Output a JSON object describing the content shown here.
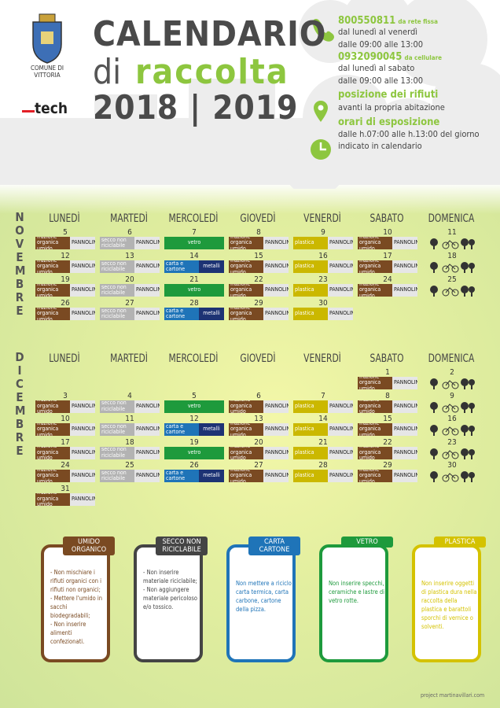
{
  "header": {
    "municipality": "COMUNE DI VITTORIA",
    "brand": "tech",
    "title": "CALENDARIO",
    "subtitle_prefix": "di",
    "subtitle": "raccolta",
    "years": "2018 | 2019"
  },
  "contacts": {
    "phone1": "800550811",
    "phone1_note": "da rete fissa",
    "phone1_days": "dal lunedì al venerdì",
    "phone1_hours": "dalle 09:00 alle 13:00",
    "phone2": "0932090045",
    "phone2_note": "da cellulare",
    "phone2_days": "dal lunedì al sabato",
    "phone2_hours": "dalle 09:00 alle 13:00",
    "position_title": "posizione dei rifiuti",
    "position_text": "avanti la propria abitazione",
    "hours_title": "orari di esposizione",
    "hours_text1": "dalle h.07:00 alle h.13:00 del giorno",
    "hours_text2": "indicato in calendario"
  },
  "weekdays": [
    "LUNEDÌ",
    "MARTEDÌ",
    "MERCOLEDÌ",
    "GIOVEDÌ",
    "VENERDÌ",
    "SABATO",
    "DOMENICA"
  ],
  "months": [
    {
      "name": "NOVEMBRE",
      "weeks": [
        [
          {
            "day": 5,
            "items": [
              {
                "text": "frazione organica umido",
                "color": "#7a4a22"
              },
              {
                "text": "PANNOLINI",
                "color": "#e6e6e6"
              }
            ]
          },
          {
            "day": 6,
            "items": [
              {
                "text": "secco non riciclabile",
                "color": "#b3b3b3"
              },
              {
                "text": "PANNOLINI",
                "color": "#e6e6e6"
              }
            ]
          },
          {
            "day": 7,
            "items": [
              {
                "text": "vetro",
                "color": "#1e9a3c"
              }
            ]
          },
          {
            "day": 8,
            "items": [
              {
                "text": "frazione organica umido",
                "color": "#7a4a22"
              },
              {
                "text": "PANNOLINI",
                "color": "#e6e6e6"
              }
            ]
          },
          {
            "day": 9,
            "items": [
              {
                "text": "plastica",
                "color": "#cbb800"
              },
              {
                "text": "PANNOLINI",
                "color": "#e6e6e6"
              }
            ]
          },
          {
            "day": 10,
            "items": [
              {
                "text": "frazione organica umido",
                "color": "#7a4a22"
              },
              {
                "text": "PANNOLINI",
                "color": "#e6e6e6"
              }
            ]
          },
          {
            "day": 11
          }
        ],
        [
          {
            "day": 12,
            "items": [
              {
                "text": "frazione organica umido",
                "color": "#7a4a22"
              },
              {
                "text": "PANNOLINI",
                "color": "#e6e6e6"
              }
            ]
          },
          {
            "day": 13,
            "items": [
              {
                "text": "secco non riciclabile",
                "color": "#b3b3b3"
              },
              {
                "text": "PANNOLINI",
                "color": "#e6e6e6"
              }
            ]
          },
          {
            "day": 14,
            "items": [
              {
                "text": "carta e cartone",
                "color": "#1f74b8"
              },
              {
                "text": "metalli",
                "color": "#1d3374"
              }
            ]
          },
          {
            "day": 15,
            "items": [
              {
                "text": "frazione organica umido",
                "color": "#7a4a22"
              },
              {
                "text": "PANNOLINI",
                "color": "#e6e6e6"
              }
            ]
          },
          {
            "day": 16,
            "items": [
              {
                "text": "plastica",
                "color": "#cbb800"
              },
              {
                "text": "PANNOLINI",
                "color": "#e6e6e6"
              }
            ]
          },
          {
            "day": 17,
            "items": [
              {
                "text": "frazione organica umido",
                "color": "#7a4a22"
              },
              {
                "text": "PANNOLINI",
                "color": "#e6e6e6"
              }
            ]
          },
          {
            "day": 18
          }
        ],
        [
          {
            "day": 19,
            "items": [
              {
                "text": "frazione organica umido",
                "color": "#7a4a22"
              },
              {
                "text": "PANNOLINI",
                "color": "#e6e6e6"
              }
            ]
          },
          {
            "day": 20,
            "items": [
              {
                "text": "secco non riciclabile",
                "color": "#b3b3b3"
              },
              {
                "text": "PANNOLINI",
                "color": "#e6e6e6"
              }
            ]
          },
          {
            "day": 21,
            "items": [
              {
                "text": "vetro",
                "color": "#1e9a3c"
              }
            ]
          },
          {
            "day": 22,
            "items": [
              {
                "text": "frazione organica umido",
                "color": "#7a4a22"
              },
              {
                "text": "PANNOLINI",
                "color": "#e6e6e6"
              }
            ]
          },
          {
            "day": 23,
            "items": [
              {
                "text": "plastica",
                "color": "#cbb800"
              },
              {
                "text": "PANNOLINI",
                "color": "#e6e6e6"
              }
            ]
          },
          {
            "day": 24,
            "items": [
              {
                "text": "frazione organica umido",
                "color": "#7a4a22"
              },
              {
                "text": "PANNOLINI",
                "color": "#e6e6e6"
              }
            ]
          },
          {
            "day": 25
          }
        ],
        [
          {
            "day": 26,
            "items": [
              {
                "text": "frazione organica umido",
                "color": "#7a4a22"
              },
              {
                "text": "PANNOLINI",
                "color": "#e6e6e6"
              }
            ]
          },
          {
            "day": 27,
            "items": [
              {
                "text": "secco non riciclabile",
                "color": "#b3b3b3"
              },
              {
                "text": "PANNOLINI",
                "color": "#e6e6e6"
              }
            ]
          },
          {
            "day": 28,
            "items": [
              {
                "text": "carta e cartone",
                "color": "#1f74b8"
              },
              {
                "text": "metalli",
                "color": "#1d3374"
              }
            ]
          },
          {
            "day": 29,
            "items": [
              {
                "text": "frazione organica umido",
                "color": "#7a4a22"
              },
              {
                "text": "PANNOLINI",
                "color": "#e6e6e6"
              }
            ]
          },
          {
            "day": 30,
            "items": [
              {
                "text": "plastica",
                "color": "#cbb800"
              },
              {
                "text": "PANNOLINI",
                "color": "#e6e6e6"
              }
            ]
          },
          null,
          null
        ]
      ]
    },
    {
      "name": "DICEMBRE",
      "weeks": [
        [
          null,
          null,
          null,
          null,
          null,
          {
            "day": 1,
            "items": [
              {
                "text": "frazione organica umido",
                "color": "#7a4a22"
              },
              {
                "text": "PANNOLINI",
                "color": "#e6e6e6"
              }
            ]
          },
          {
            "day": 2
          }
        ],
        [
          {
            "day": 3,
            "items": [
              {
                "text": "frazione organica umido",
                "color": "#7a4a22"
              },
              {
                "text": "PANNOLINI",
                "color": "#e6e6e6"
              }
            ]
          },
          {
            "day": 4,
            "items": [
              {
                "text": "secco non riciclabile",
                "color": "#b3b3b3"
              },
              {
                "text": "PANNOLINI",
                "color": "#e6e6e6"
              }
            ]
          },
          {
            "day": 5,
            "items": [
              {
                "text": "vetro",
                "color": "#1e9a3c"
              }
            ]
          },
          {
            "day": 6,
            "items": [
              {
                "text": "frazione organica umido",
                "color": "#7a4a22"
              },
              {
                "text": "PANNOLINI",
                "color": "#e6e6e6"
              }
            ]
          },
          {
            "day": 7,
            "items": [
              {
                "text": "plastica",
                "color": "#cbb800"
              },
              {
                "text": "PANNOLINI",
                "color": "#e6e6e6"
              }
            ]
          },
          {
            "day": 8,
            "items": [
              {
                "text": "frazione organica umido",
                "color": "#7a4a22"
              },
              {
                "text": "PANNOLINI",
                "color": "#e6e6e6"
              }
            ]
          },
          {
            "day": 9
          }
        ],
        [
          {
            "day": 10,
            "items": [
              {
                "text": "frazione organica umido",
                "color": "#7a4a22"
              },
              {
                "text": "PANNOLINI",
                "color": "#e6e6e6"
              }
            ]
          },
          {
            "day": 11,
            "items": [
              {
                "text": "secco non riciclabile",
                "color": "#b3b3b3"
              },
              {
                "text": "PANNOLINI",
                "color": "#e6e6e6"
              }
            ]
          },
          {
            "day": 12,
            "items": [
              {
                "text": "carta e cartone",
                "color": "#1f74b8"
              },
              {
                "text": "metalli",
                "color": "#1d3374"
              }
            ]
          },
          {
            "day": 13,
            "items": [
              {
                "text": "frazione organica umido",
                "color": "#7a4a22"
              },
              {
                "text": "PANNOLINI",
                "color": "#e6e6e6"
              }
            ]
          },
          {
            "day": 14,
            "items": [
              {
                "text": "plastica",
                "color": "#cbb800"
              },
              {
                "text": "PANNOLINI",
                "color": "#e6e6e6"
              }
            ]
          },
          {
            "day": 15,
            "items": [
              {
                "text": "frazione organica umido",
                "color": "#7a4a22"
              },
              {
                "text": "PANNOLINI",
                "color": "#e6e6e6"
              }
            ]
          },
          {
            "day": 16
          }
        ],
        [
          {
            "day": 17,
            "items": [
              {
                "text": "frazione organica umido",
                "color": "#7a4a22"
              },
              {
                "text": "PANNOLINI",
                "color": "#e6e6e6"
              }
            ]
          },
          {
            "day": 18,
            "items": [
              {
                "text": "secco non riciclabile",
                "color": "#b3b3b3"
              },
              {
                "text": "PANNOLINI",
                "color": "#e6e6e6"
              }
            ]
          },
          {
            "day": 19,
            "items": [
              {
                "text": "vetro",
                "color": "#1e9a3c"
              }
            ]
          },
          {
            "day": 20,
            "items": [
              {
                "text": "frazione organica umido",
                "color": "#7a4a22"
              },
              {
                "text": "PANNOLINI",
                "color": "#e6e6e6"
              }
            ]
          },
          {
            "day": 21,
            "items": [
              {
                "text": "plastica",
                "color": "#cbb800"
              },
              {
                "text": "PANNOLINI",
                "color": "#e6e6e6"
              }
            ]
          },
          {
            "day": 22,
            "items": [
              {
                "text": "frazione organica umido",
                "color": "#7a4a22"
              },
              {
                "text": "PANNOLINI",
                "color": "#e6e6e6"
              }
            ]
          },
          {
            "day": 23
          }
        ],
        [
          {
            "day": 24,
            "items": [
              {
                "text": "frazione organica umido",
                "color": "#7a4a22"
              },
              {
                "text": "PANNOLINI",
                "color": "#e6e6e6"
              }
            ]
          },
          {
            "day": 25,
            "items": [
              {
                "text": "secco non riciclabile",
                "color": "#b3b3b3"
              },
              {
                "text": "PANNOLINI",
                "color": "#e6e6e6"
              }
            ]
          },
          {
            "day": 26,
            "items": [
              {
                "text": "carta e cartone",
                "color": "#1f74b8"
              },
              {
                "text": "metalli",
                "color": "#1d3374"
              }
            ]
          },
          {
            "day": 27,
            "items": [
              {
                "text": "frazione organica umido",
                "color": "#7a4a22"
              },
              {
                "text": "PANNOLINI",
                "color": "#e6e6e6"
              }
            ]
          },
          {
            "day": 28,
            "items": [
              {
                "text": "plastica",
                "color": "#cbb800"
              },
              {
                "text": "PANNOLINI",
                "color": "#e6e6e6"
              }
            ]
          },
          {
            "day": 29,
            "items": [
              {
                "text": "frazione organica umido",
                "color": "#7a4a22"
              },
              {
                "text": "PANNOLINI",
                "color": "#e6e6e6"
              }
            ]
          },
          {
            "day": 30
          }
        ],
        [
          {
            "day": 31,
            "items": [
              {
                "text": "frazione organica umido",
                "color": "#7a4a22"
              },
              {
                "text": "PANNOLINI",
                "color": "#e6e6e6"
              }
            ]
          },
          null,
          null,
          null,
          null,
          null,
          null
        ]
      ]
    }
  ],
  "rules": [
    {
      "title": "UMIDO ORGANICO",
      "color": "#7a4a22",
      "text": [
        "- Non mischiare i rifiuti organici con i rifiuti non organici;",
        "- Mettere l'umido in sacchi biodegradabili;",
        "- Non inserire alimenti confezionati."
      ]
    },
    {
      "title": "SECCO NON RICICLABILE",
      "color": "#444444",
      "text": [
        "- Non inserire materiale riciclabile;",
        "- Non aggiungere materiale pericoloso e/o tossico."
      ]
    },
    {
      "title": "CARTA CARTONE",
      "color": "#1f74b8",
      "text": [
        "Non mettere a riciclo carta termica, carta carbone, cartone della pizza."
      ]
    },
    {
      "title": "VETRO",
      "color": "#1e9a3c",
      "text": [
        "Non inserire specchi, ceramiche e lastre di vetro rotte."
      ]
    },
    {
      "title": "PLASTICA",
      "color": "#d4c200",
      "text": [
        "Non inserire oggetti di plastica dura nella raccolta della plastica e barattoli sporchi di vernice o solventi."
      ]
    }
  ],
  "footer": "project martinavillari.com"
}
